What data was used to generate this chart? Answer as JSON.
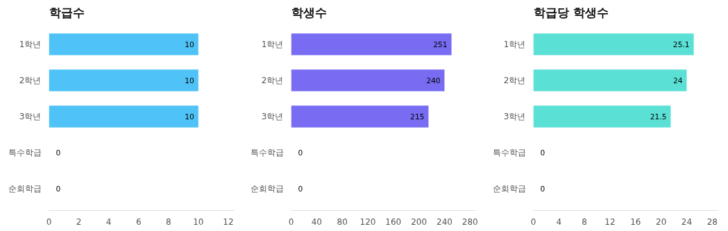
{
  "chart_data": [
    {
      "type": "bar",
      "orientation": "horizontal",
      "title": "학급수",
      "categories": [
        "1학년",
        "2학년",
        "3학년",
        "특수학급",
        "순회학급"
      ],
      "values": [
        10,
        10,
        10,
        0,
        0
      ],
      "color": "#4fc3f7",
      "xlim": [
        0,
        12.4
      ],
      "xticks": [
        0,
        2,
        4,
        6,
        8,
        10,
        12
      ],
      "data_labels": true
    },
    {
      "type": "bar",
      "orientation": "horizontal",
      "title": "학생수",
      "categories": [
        "1학년",
        "2학년",
        "3학년",
        "특수학급",
        "순회학급"
      ],
      "values": [
        251,
        240,
        215,
        0,
        0
      ],
      "color": "#776cf2",
      "xlim": [
        0,
        290
      ],
      "xticks": [
        0,
        40,
        80,
        120,
        160,
        200,
        240,
        280
      ],
      "data_labels": true
    },
    {
      "type": "bar",
      "orientation": "horizontal",
      "title": "학급당 학생수",
      "categories": [
        "1학년",
        "2학년",
        "3학년",
        "특수학급",
        "순회학급"
      ],
      "values": [
        25.1,
        24,
        21.5,
        0,
        0
      ],
      "color": "#5be0d6",
      "xlim": [
        0,
        29
      ],
      "xticks": [
        0,
        4,
        8,
        12,
        16,
        20,
        24,
        28
      ],
      "data_labels": true
    }
  ]
}
